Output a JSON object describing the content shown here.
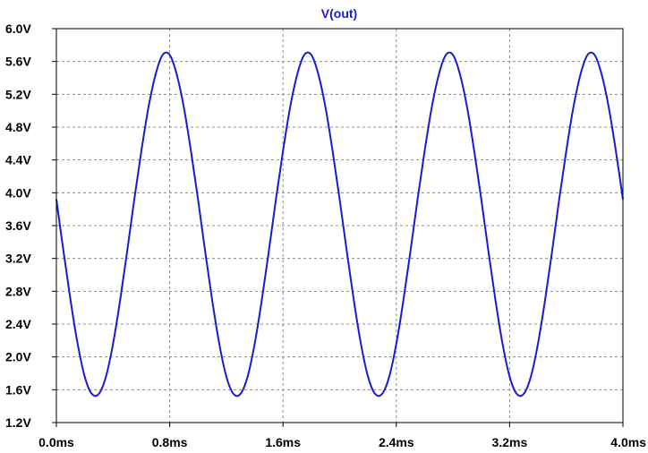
{
  "chart_data": {
    "type": "line",
    "title": "V(out)",
    "xlabel": "",
    "ylabel": "",
    "xlim": [
      0.0,
      4.0
    ],
    "ylim": [
      1.2,
      6.0
    ],
    "x_ticks": [
      0.0,
      0.8,
      1.6,
      2.4,
      3.2,
      4.0
    ],
    "x_tick_labels": [
      "0.0ms",
      "0.8ms",
      "1.6ms",
      "2.4ms",
      "3.2ms",
      "4.0ms"
    ],
    "y_ticks": [
      1.2,
      1.6,
      2.0,
      2.4,
      2.8,
      3.2,
      3.6,
      4.0,
      4.4,
      4.8,
      5.2,
      5.6,
      6.0
    ],
    "y_tick_labels": [
      "1.2V",
      "1.6V",
      "2.0V",
      "2.4V",
      "2.8V",
      "3.2V",
      "3.6V",
      "4.0V",
      "4.4V",
      "4.8V",
      "5.2V",
      "5.6V",
      "6.0V"
    ],
    "grid": true,
    "series": [
      {
        "name": "V(out)",
        "color": "#1a1ad4",
        "x": [
          0.0,
          0.05,
          0.1,
          0.15,
          0.2,
          0.25,
          0.3,
          0.35,
          0.4,
          0.45,
          0.5,
          0.55,
          0.6,
          0.65,
          0.7,
          0.75,
          0.8,
          0.85,
          0.9,
          0.95,
          1.0,
          1.05,
          1.1,
          1.15,
          1.2,
          1.25,
          1.3,
          1.35,
          1.4,
          1.45,
          1.5,
          1.55,
          1.6,
          1.65,
          1.7,
          1.75,
          1.8,
          1.85,
          1.9,
          1.95,
          2.0,
          2.05,
          2.1,
          2.15,
          2.2,
          2.25,
          2.3,
          2.35,
          2.4,
          2.45,
          2.5,
          2.55,
          2.6,
          2.65,
          2.7,
          2.75,
          2.8,
          2.85,
          2.9,
          2.95,
          3.0,
          3.05,
          3.1,
          3.15,
          3.2,
          3.25,
          3.3,
          3.35,
          3.4,
          3.45,
          3.5,
          3.55,
          3.6,
          3.65,
          3.7,
          3.75,
          3.8,
          3.85,
          3.9,
          3.95,
          4.0
        ],
        "values": [
          3.92,
          3.29,
          2.69,
          2.16,
          1.76,
          1.55,
          1.55,
          1.76,
          2.16,
          2.69,
          3.29,
          3.92,
          4.51,
          5.04,
          5.44,
          5.68,
          5.68,
          5.44,
          5.04,
          4.51,
          3.92,
          3.29,
          2.69,
          2.16,
          1.76,
          1.55,
          1.55,
          1.76,
          2.16,
          2.69,
          3.29,
          3.92,
          4.51,
          5.04,
          5.44,
          5.68,
          5.68,
          5.44,
          5.04,
          4.51,
          3.92,
          3.29,
          2.69,
          2.16,
          1.76,
          1.55,
          1.55,
          1.76,
          2.16,
          2.69,
          3.29,
          3.92,
          4.51,
          5.04,
          5.44,
          5.68,
          5.68,
          5.44,
          5.04,
          4.51,
          3.92,
          3.29,
          2.69,
          2.16,
          1.76,
          1.55,
          1.55,
          1.76,
          2.16,
          2.69,
          3.29,
          3.92,
          4.51,
          5.04,
          5.44,
          5.68,
          5.68,
          5.44,
          5.04,
          4.51,
          3.92
        ]
      }
    ]
  }
}
